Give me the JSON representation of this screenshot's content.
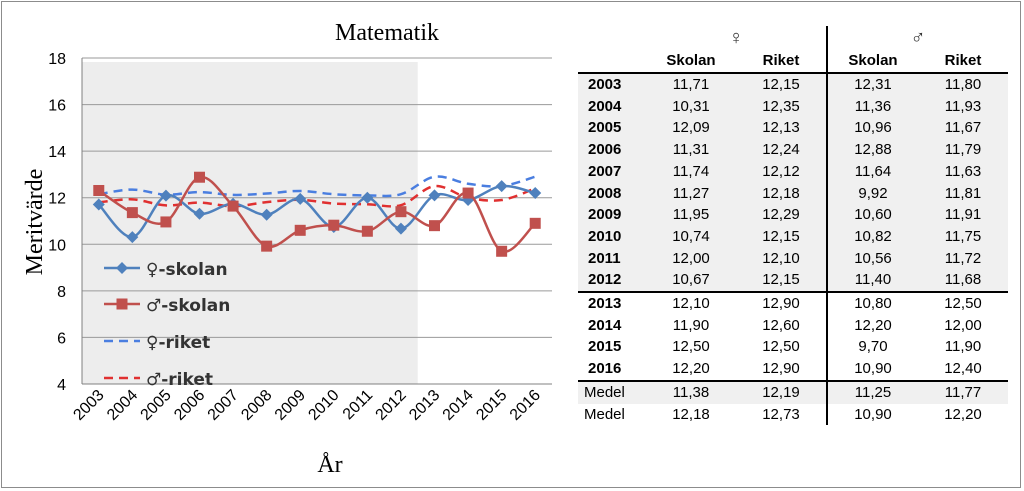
{
  "chart_data": {
    "type": "line",
    "title": "Matematik",
    "xlabel": "År",
    "ylabel": "Meritvärde",
    "ylim": [
      4,
      18
    ],
    "yticks": [
      4,
      6,
      8,
      10,
      12,
      14,
      16,
      18
    ],
    "x": [
      "2003",
      "2004",
      "2005",
      "2006",
      "2007",
      "2008",
      "2009",
      "2010",
      "2011",
      "2012",
      "2013",
      "2014",
      "2015",
      "2016"
    ],
    "shaded_range": [
      "2003",
      "2012"
    ],
    "grid": true,
    "legend_position": "left",
    "series": [
      {
        "name": "♀-skolan",
        "style": "solid-diamond",
        "color": "#4f81bd",
        "values": [
          11.71,
          10.31,
          12.09,
          11.31,
          11.74,
          11.27,
          11.95,
          10.74,
          12.0,
          10.67,
          12.1,
          11.9,
          12.5,
          12.2
        ]
      },
      {
        "name": "♂-skolan",
        "style": "solid-square",
        "color": "#c0504d",
        "values": [
          12.31,
          11.36,
          10.96,
          12.88,
          11.64,
          9.92,
          10.6,
          10.82,
          10.56,
          11.4,
          10.8,
          12.2,
          9.7,
          10.9
        ]
      },
      {
        "name": "♀-riket",
        "style": "dashed",
        "color": "#4a7ee0",
        "values": [
          12.15,
          12.35,
          12.13,
          12.24,
          12.12,
          12.18,
          12.29,
          12.15,
          12.1,
          12.15,
          12.9,
          12.6,
          12.5,
          12.9
        ]
      },
      {
        "name": "♂-riket",
        "style": "dashed",
        "color": "#e03030",
        "values": [
          11.8,
          11.93,
          11.67,
          11.79,
          11.63,
          11.81,
          11.91,
          11.75,
          11.72,
          11.68,
          12.5,
          12.0,
          11.9,
          12.4
        ]
      }
    ]
  },
  "table": {
    "female_symbol": "♀",
    "male_symbol": "♂",
    "headers": [
      "Skolan",
      "Riket",
      "Skolan",
      "Riket"
    ],
    "rows": [
      {
        "year": "2003",
        "fs": "11,71",
        "fr": "12,15",
        "ms": "12,31",
        "mr": "11,80"
      },
      {
        "year": "2004",
        "fs": "10,31",
        "fr": "12,35",
        "ms": "11,36",
        "mr": "11,93"
      },
      {
        "year": "2005",
        "fs": "12,09",
        "fr": "12,13",
        "ms": "10,96",
        "mr": "11,67"
      },
      {
        "year": "2006",
        "fs": "11,31",
        "fr": "12,24",
        "ms": "12,88",
        "mr": "11,79"
      },
      {
        "year": "2007",
        "fs": "11,74",
        "fr": "12,12",
        "ms": "11,64",
        "mr": "11,63"
      },
      {
        "year": "2008",
        "fs": "11,27",
        "fr": "12,18",
        "ms": "9,92",
        "mr": "11,81"
      },
      {
        "year": "2009",
        "fs": "11,95",
        "fr": "12,29",
        "ms": "10,60",
        "mr": "11,91"
      },
      {
        "year": "2010",
        "fs": "10,74",
        "fr": "12,15",
        "ms": "10,82",
        "mr": "11,75"
      },
      {
        "year": "2011",
        "fs": "12,00",
        "fr": "12,10",
        "ms": "10,56",
        "mr": "11,72"
      },
      {
        "year": "2012",
        "fs": "10,67",
        "fr": "12,15",
        "ms": "11,40",
        "mr": "11,68"
      },
      {
        "year": "2013",
        "fs": "12,10",
        "fr": "12,90",
        "ms": "10,80",
        "mr": "12,50"
      },
      {
        "year": "2014",
        "fs": "11,90",
        "fr": "12,60",
        "ms": "12,20",
        "mr": "12,00"
      },
      {
        "year": "2015",
        "fs": "12,50",
        "fr": "12,50",
        "ms": "9,70",
        "mr": "11,90"
      },
      {
        "year": "2016",
        "fs": "12,20",
        "fr": "12,90",
        "ms": "10,90",
        "mr": "12,40"
      }
    ],
    "medel": [
      {
        "label": "Medel",
        "fs": "11,38",
        "fr": "12,19",
        "ms": "11,25",
        "mr": "11,77"
      },
      {
        "label": "Medel",
        "fs": "12,18",
        "fr": "12,73",
        "ms": "10,90",
        "mr": "12,20"
      }
    ]
  }
}
